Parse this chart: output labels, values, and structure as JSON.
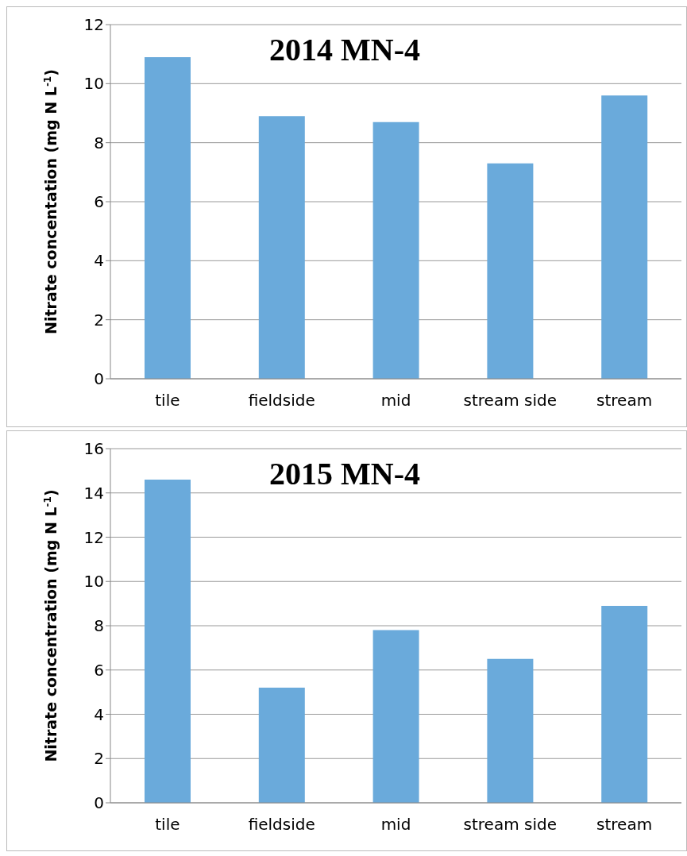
{
  "chart_data": [
    {
      "type": "bar",
      "title": "2014 MN-4",
      "ylabel": "Nitrate concentation (mg N L$^{-1}$)",
      "categories": [
        "tile",
        "fieldside",
        "mid",
        "stream side",
        "stream"
      ],
      "values": [
        10.9,
        8.9,
        8.7,
        7.3,
        9.6
      ],
      "color": "#6aaadb",
      "ylim": [
        0,
        12
      ],
      "yticks": [
        0,
        2,
        4,
        6,
        8,
        10,
        12
      ],
      "grid": "y"
    },
    {
      "type": "bar",
      "title": "2015 MN-4",
      "ylabel": "Nitrate concentration (mg N L$^{-1}$)",
      "categories": [
        "tile",
        "fieldside",
        "mid",
        "stream side",
        "stream"
      ],
      "values": [
        14.6,
        5.2,
        7.8,
        6.5,
        8.9
      ],
      "color": "#6aaadb",
      "ylim": [
        0,
        16
      ],
      "yticks": [
        0,
        2,
        4,
        6,
        8,
        10,
        12,
        14,
        16
      ],
      "grid": "y"
    }
  ]
}
